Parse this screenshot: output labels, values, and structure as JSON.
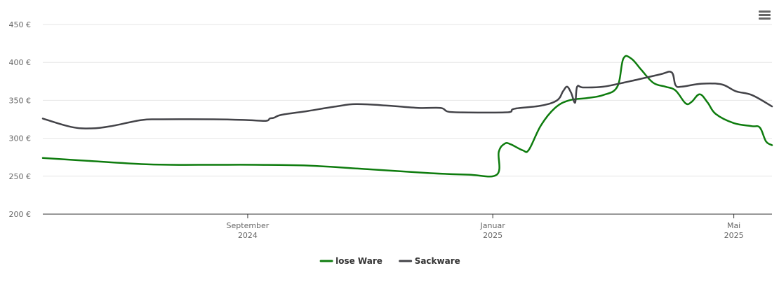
{
  "chart_data": {
    "type": "line",
    "title": "",
    "xlabel": "",
    "ylabel": "",
    "y_unit": "€",
    "ylim": [
      200,
      450
    ],
    "yticks": [
      {
        "value": 450,
        "label": "450 €"
      },
      {
        "value": 400,
        "label": "400 €"
      },
      {
        "value": 350,
        "label": "350 €"
      },
      {
        "value": 300,
        "label": "300 €"
      },
      {
        "value": 250,
        "label": "250 €"
      },
      {
        "value": 200,
        "label": "200 €"
      }
    ],
    "xlim": [
      "2024-05-22",
      "2025-05-20"
    ],
    "xticks": [
      {
        "date": "2024-09-01",
        "month": "September",
        "year": "2024"
      },
      {
        "date": "2025-01-01",
        "month": "Januar",
        "year": "2025"
      },
      {
        "date": "2025-05-01",
        "month": "Mai",
        "year": "2025"
      }
    ],
    "grid": true,
    "legend_position": "bottom-center",
    "series": [
      {
        "name": "lose Ware",
        "color": "#0e7c0e",
        "points": [
          [
            "2024-05-22",
            274
          ],
          [
            "2024-06-15",
            270
          ],
          [
            "2024-07-10",
            266
          ],
          [
            "2024-07-25",
            265
          ],
          [
            "2024-08-15",
            265
          ],
          [
            "2024-09-05",
            265
          ],
          [
            "2024-10-01",
            264
          ],
          [
            "2024-11-01",
            259
          ],
          [
            "2024-12-01",
            254
          ],
          [
            "2024-12-20",
            252
          ],
          [
            "2025-01-03",
            252
          ],
          [
            "2025-01-04",
            282
          ],
          [
            "2025-01-07",
            293
          ],
          [
            "2025-01-10",
            292
          ],
          [
            "2025-01-16",
            284
          ],
          [
            "2025-01-19",
            285
          ],
          [
            "2025-01-25",
            317
          ],
          [
            "2025-02-01",
            340
          ],
          [
            "2025-02-08",
            350
          ],
          [
            "2025-02-17",
            353
          ],
          [
            "2025-02-25",
            357
          ],
          [
            "2025-03-04",
            368
          ],
          [
            "2025-03-07",
            405
          ],
          [
            "2025-03-11",
            405
          ],
          [
            "2025-03-16",
            390
          ],
          [
            "2025-03-22",
            373
          ],
          [
            "2025-03-28",
            368
          ],
          [
            "2025-04-02",
            363
          ],
          [
            "2025-04-07",
            346
          ],
          [
            "2025-04-10",
            348
          ],
          [
            "2025-04-14",
            358
          ],
          [
            "2025-04-18",
            347
          ],
          [
            "2025-04-22",
            332
          ],
          [
            "2025-05-01",
            320
          ],
          [
            "2025-05-10",
            316
          ],
          [
            "2025-05-14",
            314
          ],
          [
            "2025-05-17",
            296
          ],
          [
            "2025-05-20",
            291
          ]
        ]
      },
      {
        "name": "Sackware",
        "color": "#434348",
        "points": [
          [
            "2024-05-22",
            326
          ],
          [
            "2024-06-05",
            315
          ],
          [
            "2024-06-15",
            313
          ],
          [
            "2024-06-25",
            316
          ],
          [
            "2024-07-10",
            324
          ],
          [
            "2024-07-20",
            325
          ],
          [
            "2024-08-15",
            325
          ],
          [
            "2024-09-01",
            324
          ],
          [
            "2024-09-10",
            323
          ],
          [
            "2024-09-12",
            326
          ],
          [
            "2024-09-14",
            327
          ],
          [
            "2024-09-18",
            331
          ],
          [
            "2024-10-01",
            336
          ],
          [
            "2024-10-15",
            342
          ],
          [
            "2024-10-25",
            345
          ],
          [
            "2024-11-10",
            343
          ],
          [
            "2024-11-25",
            340
          ],
          [
            "2024-12-06",
            340
          ],
          [
            "2024-12-10",
            335
          ],
          [
            "2024-12-20",
            334
          ],
          [
            "2025-01-06",
            334
          ],
          [
            "2025-01-10",
            335
          ],
          [
            "2025-01-12",
            339
          ],
          [
            "2025-01-25",
            343
          ],
          [
            "2025-02-02",
            350
          ],
          [
            "2025-02-05",
            362
          ],
          [
            "2025-02-07",
            368
          ],
          [
            "2025-02-09",
            360
          ],
          [
            "2025-02-11",
            347
          ],
          [
            "2025-02-12",
            368
          ],
          [
            "2025-02-15",
            367
          ],
          [
            "2025-02-25",
            368
          ],
          [
            "2025-03-10",
            375
          ],
          [
            "2025-03-25",
            384
          ],
          [
            "2025-03-31",
            387
          ],
          [
            "2025-04-02",
            370
          ],
          [
            "2025-04-05",
            368
          ],
          [
            "2025-04-15",
            372
          ],
          [
            "2025-04-25",
            371
          ],
          [
            "2025-05-02",
            362
          ],
          [
            "2025-05-10",
            357
          ],
          [
            "2025-05-20",
            342
          ]
        ]
      }
    ]
  },
  "menu": {
    "icon": "hamburger-menu-icon"
  }
}
